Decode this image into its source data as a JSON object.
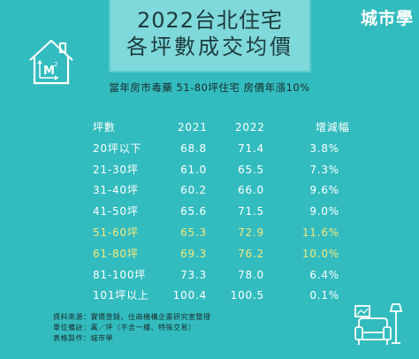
{
  "brand": "城市學",
  "title": {
    "line1": "2022台北住宅",
    "line2": "各坪數成交均價"
  },
  "subtitle": "當年房市毒藥 51-80坪住宅 房價年漲10%",
  "colors": {
    "background": "#33bcbf",
    "title_box": "#7fd8d9",
    "highlight_text": "#f4e87a",
    "text": "#ffffff"
  },
  "chart_data": {
    "type": "table",
    "columns": [
      "坪數",
      "2021",
      "2022",
      "增減幅"
    ],
    "rows": [
      {
        "size": "20坪以下",
        "y2021": "68.8",
        "y2022": "71.4",
        "change": "3.8%",
        "highlight": false
      },
      {
        "size": "21-30坪",
        "y2021": "61.0",
        "y2022": "65.5",
        "change": "7.3%",
        "highlight": false
      },
      {
        "size": "31-40坪",
        "y2021": "60.2",
        "y2022": "66.0",
        "change": "9.6%",
        "highlight": false
      },
      {
        "size": "41-50坪",
        "y2021": "65.6",
        "y2022": "71.5",
        "change": "9.0%",
        "highlight": false
      },
      {
        "size": "51-60坪",
        "y2021": "65.3",
        "y2022": "72.9",
        "change": "11.6%",
        "highlight": true
      },
      {
        "size": "61-80坪",
        "y2021": "69.3",
        "y2022": "76.2",
        "change": "10.0%",
        "highlight": true
      },
      {
        "size": "81-100坪",
        "y2021": "73.3",
        "y2022": "78.0",
        "change": "6.4%",
        "highlight": false
      },
      {
        "size": "101坪以上",
        "y2021": "100.4",
        "y2022": "100.5",
        "change": "0.1%",
        "highlight": false
      }
    ]
  },
  "footnotes": [
    "資料來源：實價登錄、住商機構企畫研究室整理",
    "單位備註：萬／坪（不含一樓、特殊交易）",
    "表格製作：城市學"
  ],
  "icons": {
    "house": "house-area-icon",
    "furniture": "living-room-icon"
  }
}
